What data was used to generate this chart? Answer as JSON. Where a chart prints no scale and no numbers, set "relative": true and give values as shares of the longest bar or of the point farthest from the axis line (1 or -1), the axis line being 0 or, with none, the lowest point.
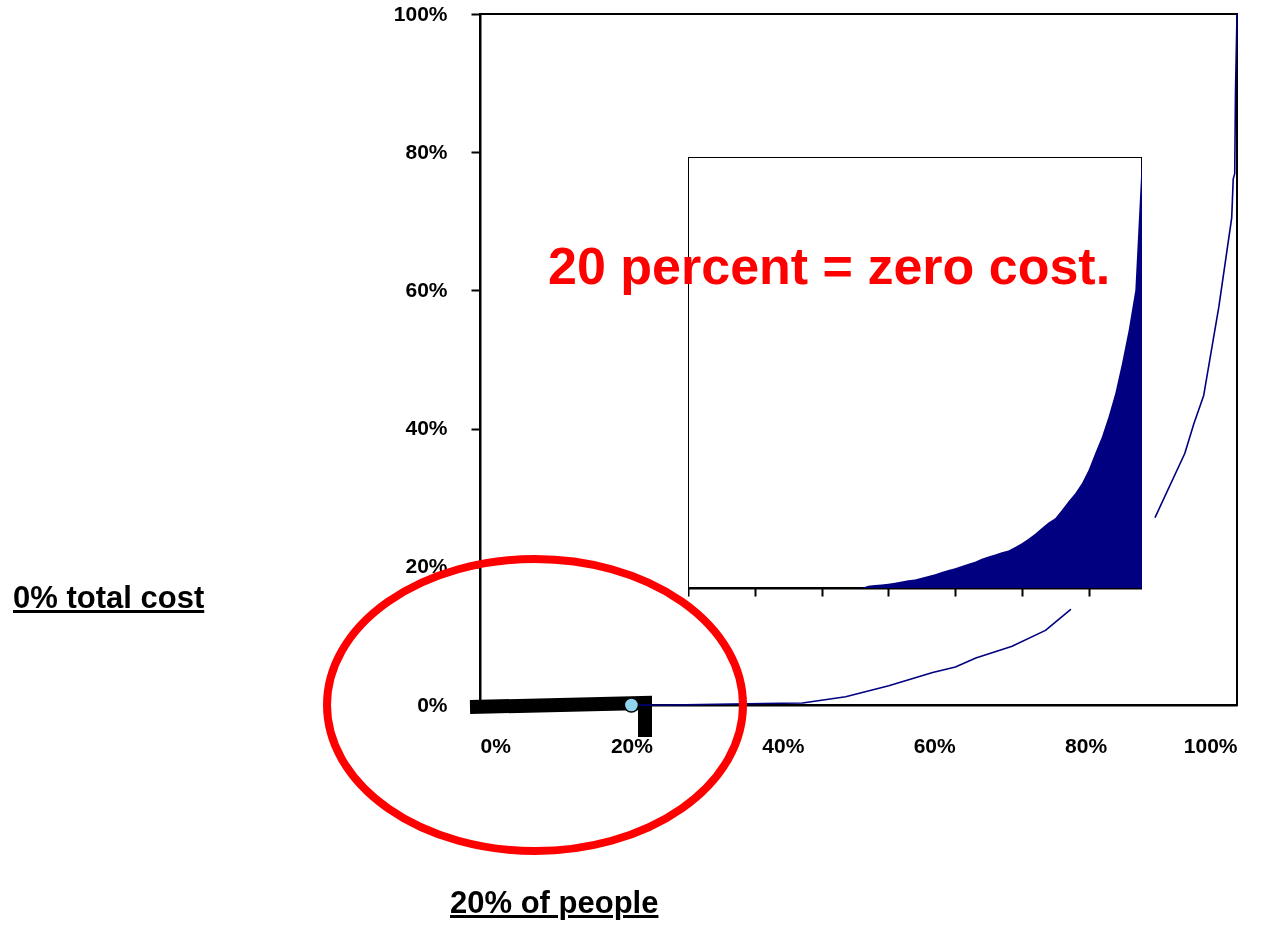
{
  "chart_data": [
    {
      "type": "line",
      "xlim": [
        0,
        100
      ],
      "ylim": [
        0,
        100
      ],
      "xticks": [
        {
          "value": 0,
          "label": "0%"
        },
        {
          "value": 20,
          "label": "20%"
        },
        {
          "value": 40,
          "label": "40%"
        },
        {
          "value": 60,
          "label": "60%"
        },
        {
          "value": 80,
          "label": "80%"
        },
        {
          "value": 100,
          "label": "100%"
        }
      ],
      "yticks": [
        {
          "value": 0,
          "label": "0%"
        },
        {
          "value": 20,
          "label": "20%"
        },
        {
          "value": 40,
          "label": "40%"
        },
        {
          "value": 60,
          "label": "60%"
        },
        {
          "value": 80,
          "label": "80%"
        },
        {
          "value": 100,
          "label": "100%"
        }
      ],
      "series": [
        {
          "color": "#000080",
          "x": [
            20,
            25,
            42.6,
            48.3,
            54,
            59.8,
            62.8,
            65.5,
            70.3,
            74.7,
            78,
            84,
            89.2,
            93.1,
            94.3,
            95.6,
            97.6,
            99.3,
            99.5,
            99.7,
            99.8,
            100
          ],
          "values": [
            0,
            0,
            0.3,
            1.2,
            2.8,
            4.7,
            5.5,
            6.8,
            8.5,
            10.8,
            13.8,
            null,
            27.2,
            36.4,
            40.7,
            44.8,
            57.6,
            70.5,
            76.1,
            76.9,
            88.7,
            100
          ]
        },
        {
          "type": "scatter",
          "marker": "circle",
          "color": "#8fd3ee",
          "x": [
            20
          ],
          "values": [
            0
          ]
        }
      ],
      "annotations": [
        "20 percent = zero cost.",
        "0% total cost",
        "20% of people"
      ]
    },
    {
      "type": "area",
      "relative": true,
      "categories": [
        null,
        null,
        null,
        null,
        null,
        null,
        null,
        null,
        null,
        null,
        null,
        null,
        null,
        null,
        null,
        null,
        null,
        null,
        null,
        null,
        null,
        null,
        null,
        null,
        null,
        null,
        null,
        null,
        null,
        null,
        null,
        null,
        null,
        null,
        null,
        null,
        null,
        null,
        null,
        null,
        null,
        null,
        null,
        null,
        null,
        null,
        null,
        null,
        null,
        null,
        null,
        null,
        null,
        null,
        null,
        null,
        null,
        null,
        null,
        null,
        null,
        null,
        null,
        null,
        null,
        null,
        null,
        null,
        null
      ],
      "series": [
        {
          "color": "#000080",
          "values": [
            0,
            0,
            0,
            0,
            0,
            0,
            0,
            0,
            0,
            0,
            0,
            0,
            0,
            0,
            0,
            0,
            0,
            0,
            0,
            0,
            0,
            0,
            0,
            0,
            0,
            0,
            0,
            0.005,
            0.007,
            0.008,
            0.01,
            0.012,
            0.015,
            0.018,
            0.02,
            0.024,
            0.028,
            0.032,
            0.037,
            0.042,
            0.046,
            0.051,
            0.056,
            0.061,
            0.068,
            0.073,
            0.078,
            0.083,
            0.087,
            0.095,
            0.104,
            0.114,
            0.126,
            0.139,
            0.152,
            0.162,
            0.181,
            0.201,
            0.22,
            0.243,
            0.274,
            0.313,
            0.351,
            0.398,
            0.452,
            0.521,
            0.598,
            0.691,
            1.0
          ]
        }
      ]
    }
  ]
}
